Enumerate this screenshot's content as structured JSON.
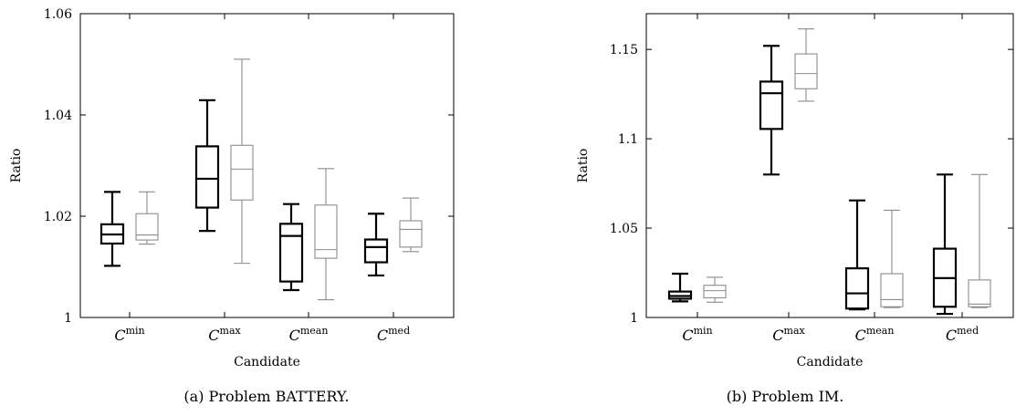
{
  "chart_data": [
    {
      "type": "box",
      "caption": "(a) Problem BATTERY.",
      "xlabel": "Candidate",
      "ylabel": "Ratio",
      "ylim": [
        1,
        1.06
      ],
      "yticks": [
        1,
        1.02,
        1.04,
        1.06
      ],
      "ytick_labels": [
        "1",
        "1.02",
        "1.04",
        "1.06"
      ],
      "categories": [
        {
          "main": "C",
          "sup": "min"
        },
        {
          "main": "C",
          "sup": "max"
        },
        {
          "main": "C",
          "sup": "mean"
        },
        {
          "main": "C",
          "sup": "med"
        }
      ],
      "series": [
        {
          "color": "#000000",
          "boxes": [
            {
              "min": 1.0102,
              "q1": 1.0146,
              "median": 1.0164,
              "q3": 1.0184,
              "max": 1.0248
            },
            {
              "min": 1.0171,
              "q1": 1.0217,
              "median": 1.0274,
              "q3": 1.0338,
              "max": 1.0429
            },
            {
              "min": 1.0054,
              "q1": 1.0071,
              "median": 1.0161,
              "q3": 1.0185,
              "max": 1.0224
            },
            {
              "min": 1.0083,
              "q1": 1.0109,
              "median": 1.0139,
              "q3": 1.0154,
              "max": 1.0205
            }
          ]
        },
        {
          "color": "#8c8c8c",
          "boxes": [
            {
              "min": 1.0145,
              "q1": 1.0153,
              "median": 1.0163,
              "q3": 1.0205,
              "max": 1.0248
            },
            {
              "min": 1.0107,
              "q1": 1.0232,
              "median": 1.0293,
              "q3": 1.034,
              "max": 1.051
            },
            {
              "min": 1.0035,
              "q1": 1.0117,
              "median": 1.0134,
              "q3": 1.0222,
              "max": 1.0294
            },
            {
              "min": 1.013,
              "q1": 1.0139,
              "median": 1.0174,
              "q3": 1.0191,
              "max": 1.0236
            }
          ]
        }
      ]
    },
    {
      "type": "box",
      "caption": "(b) Problem IM.",
      "xlabel": "Candidate",
      "ylabel": "Ratio",
      "ylim": [
        1,
        1.17
      ],
      "yticks": [
        1,
        1.05,
        1.1,
        1.15
      ],
      "ytick_labels": [
        "1",
        "1.05",
        "1.1",
        "1.15"
      ],
      "categories": [
        {
          "main": "C",
          "sup": "min"
        },
        {
          "main": "C",
          "sup": "max"
        },
        {
          "main": "C",
          "sup": "mean"
        },
        {
          "main": "C",
          "sup": "med"
        }
      ],
      "series": [
        {
          "color": "#000000",
          "boxes": [
            {
              "min": 1.009,
              "q1": 1.0105,
              "median": 1.012,
              "q3": 1.0145,
              "max": 1.0245
            },
            {
              "min": 1.08,
              "q1": 1.1055,
              "median": 1.1255,
              "q3": 1.132,
              "max": 1.152
            },
            {
              "min": 1.0045,
              "q1": 1.005,
              "median": 1.0135,
              "q3": 1.0275,
              "max": 1.0655
            },
            {
              "min": 1.002,
              "q1": 1.006,
              "median": 1.022,
              "q3": 1.0385,
              "max": 1.08
            }
          ]
        },
        {
          "color": "#8c8c8c",
          "boxes": [
            {
              "min": 1.0085,
              "q1": 1.011,
              "median": 1.015,
              "q3": 1.018,
              "max": 1.0225
            },
            {
              "min": 1.121,
              "q1": 1.128,
              "median": 1.1365,
              "q3": 1.1475,
              "max": 1.1615
            },
            {
              "min": 1.0055,
              "q1": 1.006,
              "median": 1.01,
              "q3": 1.0245,
              "max": 1.06
            },
            {
              "min": 1.0055,
              "q1": 1.006,
              "median": 1.0075,
              "q3": 1.021,
              "max": 1.08
            }
          ]
        }
      ]
    }
  ]
}
